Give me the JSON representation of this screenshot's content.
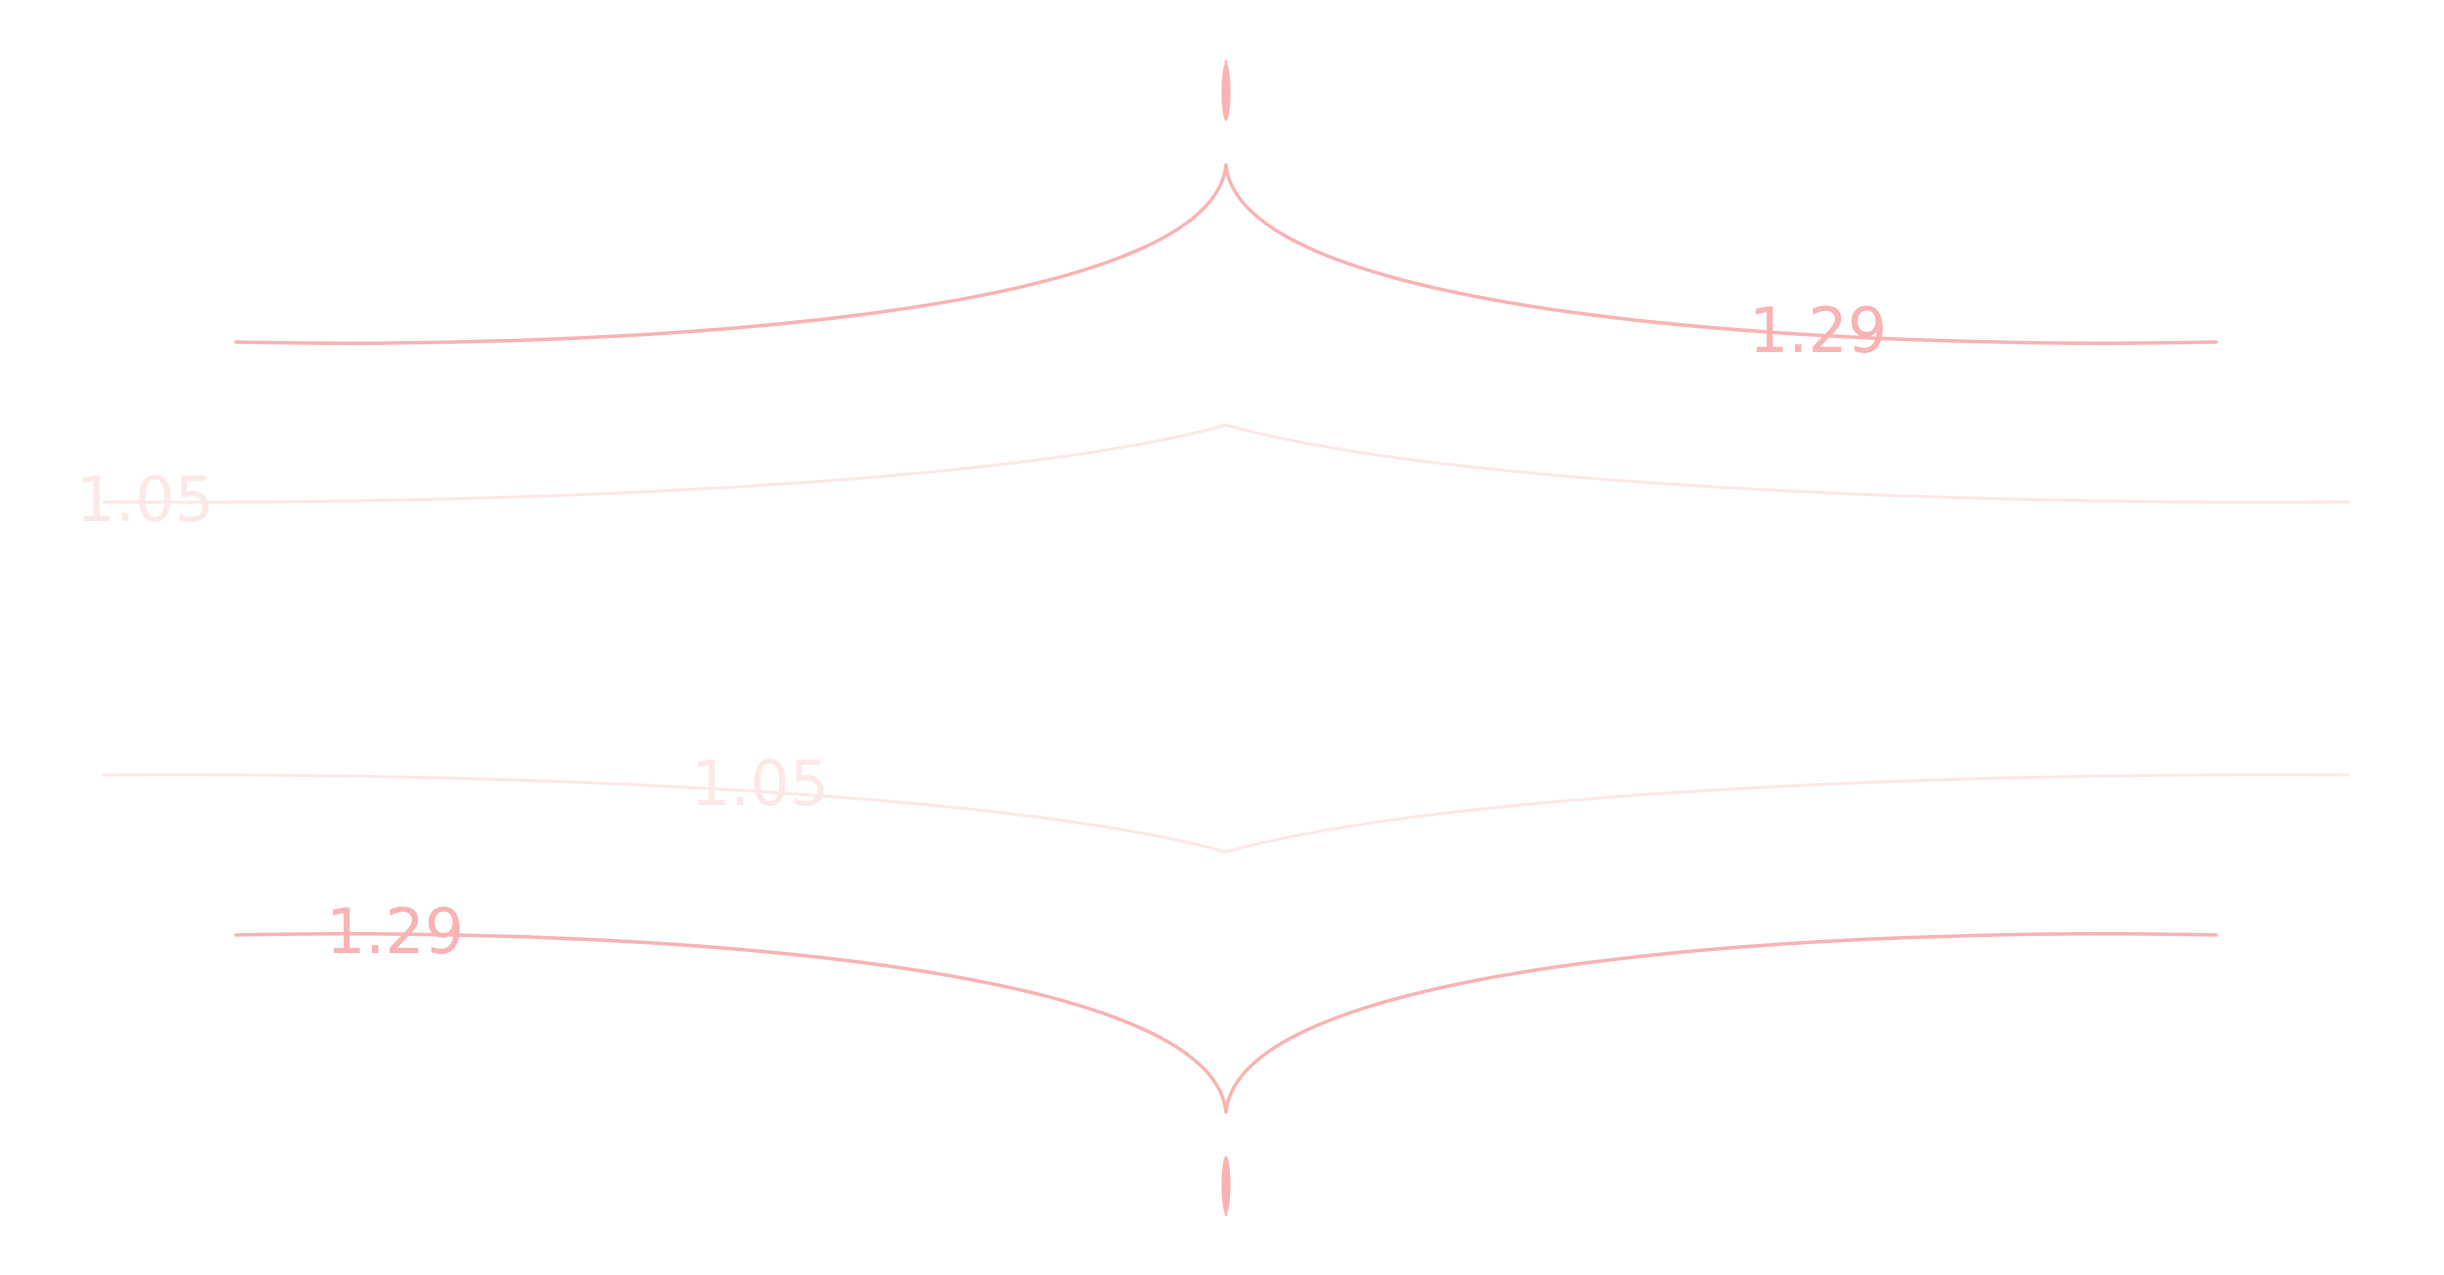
{
  "colors": {
    "strong": "#f9b3b3",
    "faint": "#fde8e8",
    "background": "#ffffff"
  },
  "curves": [
    {
      "id": "upper-outer",
      "style": "strong",
      "label": "1.29"
    },
    {
      "id": "upper-inner",
      "style": "faint",
      "label": "1.05"
    },
    {
      "id": "lower-inner",
      "style": "faint",
      "label": "1.05"
    },
    {
      "id": "lower-outer",
      "style": "strong",
      "label": "1.29"
    }
  ]
}
